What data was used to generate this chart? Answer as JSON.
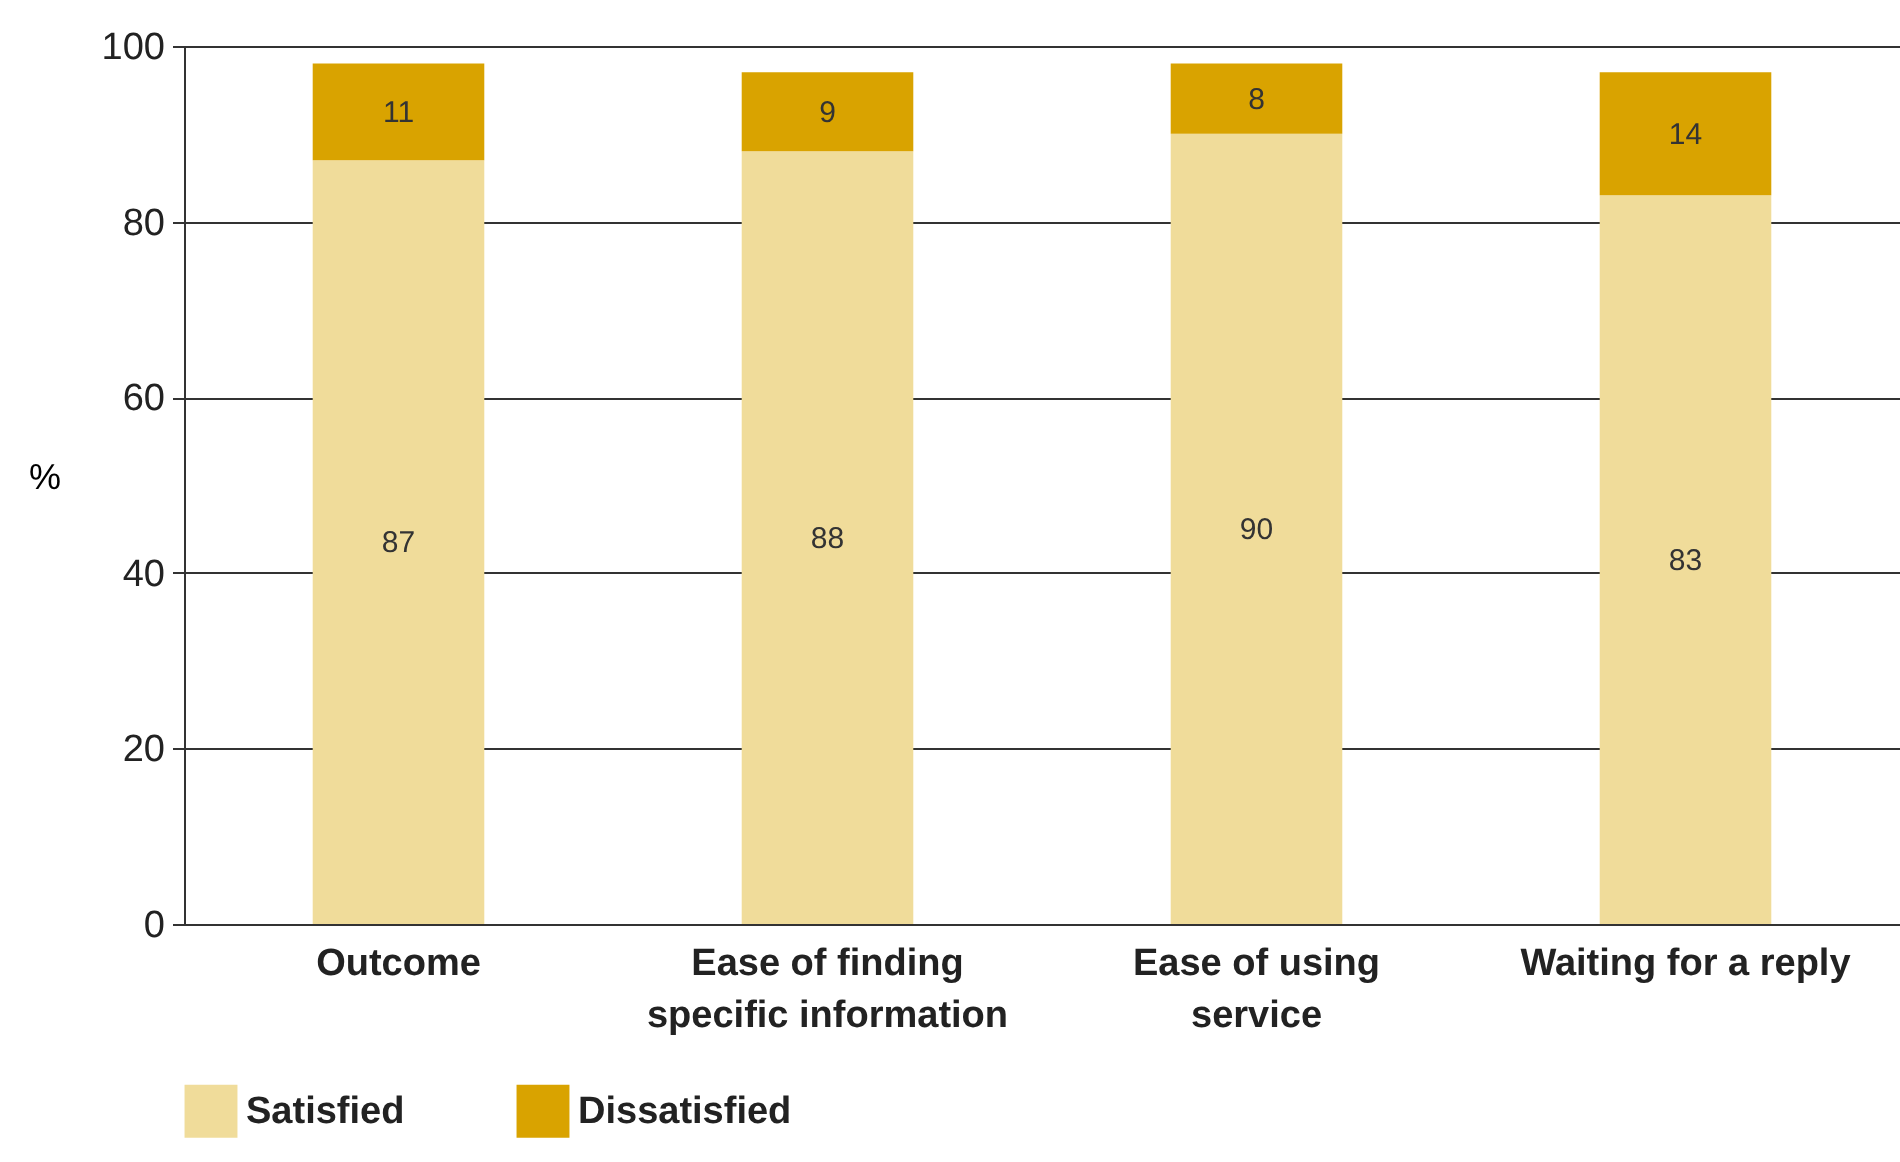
{
  "chart_data": {
    "type": "bar",
    "stacked": true,
    "ylabel": "%",
    "categories": [
      "Outcome",
      "Ease of finding specific information",
      "Ease of using service",
      "Waiting for a reply"
    ],
    "series": [
      {
        "name": "Satisfied",
        "color": "#f0dc9a",
        "values": [
          87,
          88,
          90,
          83
        ]
      },
      {
        "name": "Dissatisfied",
        "color": "#d9a300",
        "values": [
          11,
          9,
          8,
          14
        ]
      }
    ],
    "ylim": [
      0,
      100
    ],
    "yticks": [
      0,
      20,
      40,
      60,
      80,
      100
    ],
    "grid": "y",
    "legend": "bottom left",
    "data_labels": true
  }
}
